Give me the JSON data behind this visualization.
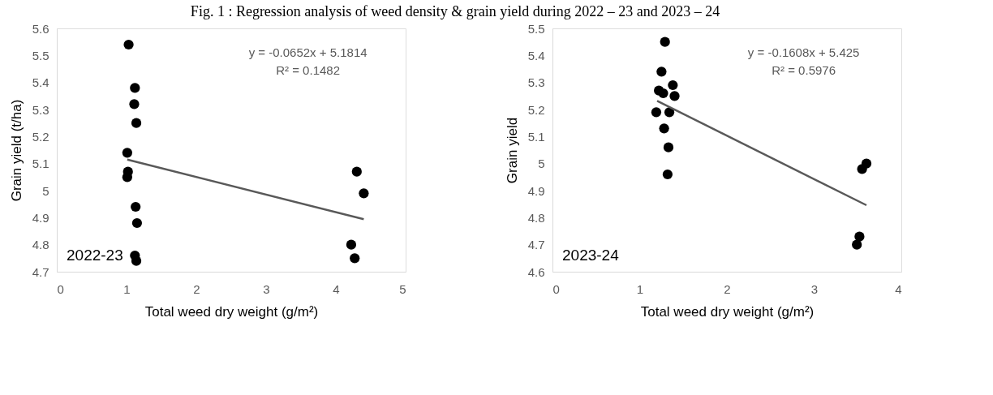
{
  "chart_data": [
    {
      "type": "scatter",
      "title": "Fig. 1 : Regression analysis of weed density & grain yield during 2022 – 23 and 2023 – 24",
      "xlabel": "Total weed  dry weight (g/m²)",
      "ylabel": "Grain yield (t/ha)",
      "xlim": [
        0,
        5
      ],
      "xticks": [
        0,
        1,
        2,
        3,
        4,
        5
      ],
      "ylim": [
        4.7,
        5.6
      ],
      "yticks": [
        4.7,
        4.8,
        4.9,
        5,
        5.1,
        5.2,
        5.3,
        5.4,
        5.5,
        5.6
      ],
      "grid": false,
      "annotations": [
        "y = -0.0652x + 5.1814",
        "R² = 0.1482",
        "2022-23"
      ],
      "series": [
        {
          "marker": "circle",
          "color": "#000000",
          "x": [
            1.03,
            1.12,
            1.11,
            1.14,
            1.01,
            1.02,
            1.01,
            1.13,
            1.15,
            1.12,
            1.14,
            4.3,
            4.4,
            4.22,
            4.27
          ],
          "values": [
            5.54,
            5.38,
            5.32,
            5.25,
            5.14,
            5.07,
            5.05,
            4.94,
            4.88,
            4.76,
            4.74,
            5.07,
            4.99,
            4.8,
            4.75
          ]
        },
        {
          "type": "line",
          "color": "#595959",
          "line_style": "solid",
          "x": [
            1.01,
            4.4
          ],
          "values": [
            5.115,
            4.894
          ]
        }
      ]
    },
    {
      "type": "scatter",
      "xlabel": "Total weed dry weight (g/m²)",
      "ylabel": "Grain yield",
      "xlim": [
        0,
        4
      ],
      "xticks": [
        0,
        1,
        2,
        3,
        4
      ],
      "ylim": [
        4.6,
        5.5
      ],
      "yticks": [
        4.6,
        4.7,
        4.8,
        4.9,
        5,
        5.1,
        5.2,
        5.3,
        5.4,
        5.5
      ],
      "grid": false,
      "annotations": [
        "y = -0.1608x + 5.425",
        "R² = 0.5976",
        "2023-24"
      ],
      "series": [
        {
          "marker": "circle",
          "color": "#000000",
          "x": [
            1.29,
            1.25,
            1.22,
            1.27,
            1.38,
            1.4,
            1.19,
            1.34,
            1.28,
            1.33,
            1.32,
            3.55,
            3.6,
            3.52,
            3.49
          ],
          "values": [
            5.45,
            5.34,
            5.27,
            5.26,
            5.29,
            5.25,
            5.19,
            5.19,
            5.13,
            5.06,
            4.96,
            4.98,
            5.0,
            4.73,
            4.7
          ]
        },
        {
          "type": "line",
          "color": "#595959",
          "line_style": "solid",
          "x": [
            1.2,
            3.6
          ],
          "values": [
            5.232,
            4.846
          ]
        }
      ]
    }
  ]
}
